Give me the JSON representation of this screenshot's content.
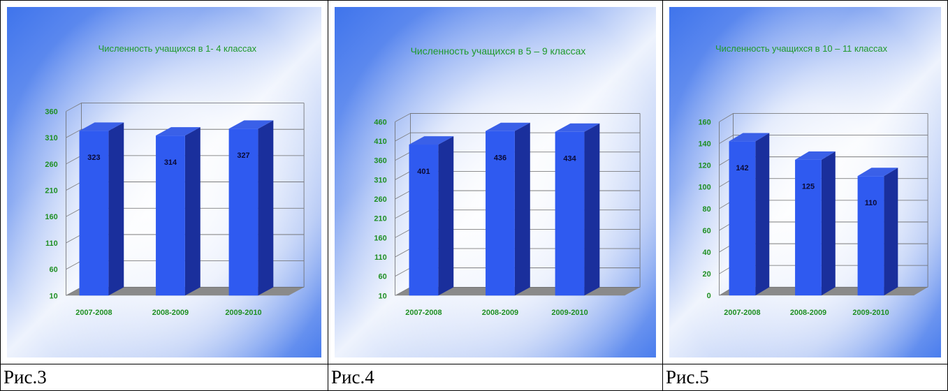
{
  "captions": [
    "Рис.3",
    "Рис.4",
    "Рис.5"
  ],
  "colors": {
    "bar_front": "#2f5af0",
    "bar_side": "#1a2f9c",
    "bar_top": "#3a60e8",
    "floor": "#8a8a8a",
    "text": "#1e8f22"
  },
  "chart_data": [
    {
      "type": "bar",
      "title": "Численность учащихся в 1- 4 классах",
      "categories": [
        "2007-2008",
        "2008-2009",
        "2009-2010"
      ],
      "values": [
        323,
        314,
        327
      ],
      "value_labels": [
        "323",
        "314",
        "327"
      ],
      "yticks": [
        "10",
        "60",
        "110",
        "160",
        "210",
        "260",
        "310",
        "360"
      ],
      "ylim": [
        10,
        360
      ],
      "grid": true
    },
    {
      "type": "bar",
      "title": "Численность учащихся в 5 – 9 классах",
      "categories": [
        "2007-2008",
        "2008-2009",
        "2009-2010"
      ],
      "values": [
        401,
        436,
        434
      ],
      "value_labels": [
        "401",
        "436",
        "434"
      ],
      "yticks": [
        "10",
        "60",
        "110",
        "160",
        "210",
        "260",
        "310",
        "360",
        "410",
        "460"
      ],
      "ylim": [
        10,
        460
      ],
      "grid": true
    },
    {
      "type": "bar",
      "title": "Численность учащихся в 10 – 11 классах",
      "categories": [
        "2007-2008",
        "2008-2009",
        "2009-2010"
      ],
      "values": [
        142,
        125,
        110
      ],
      "value_labels": [
        "142",
        "125",
        "110"
      ],
      "yticks": [
        "0",
        "20",
        "40",
        "60",
        "80",
        "100",
        "120",
        "140",
        "160"
      ],
      "ylim": [
        0,
        160
      ],
      "grid": true
    }
  ]
}
